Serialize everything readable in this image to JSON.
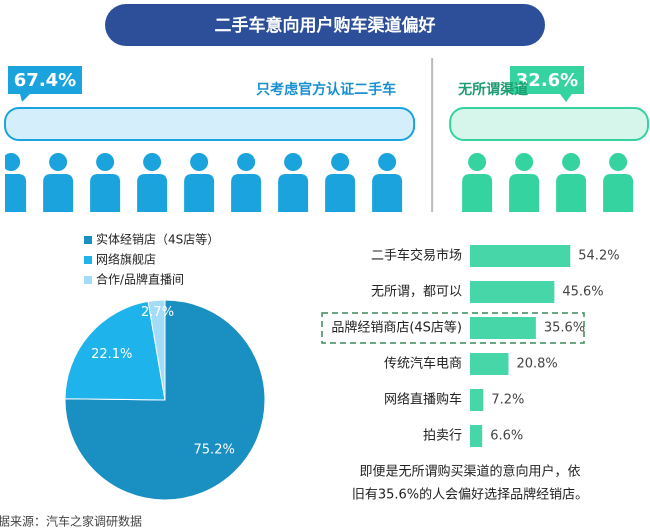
{
  "title": "二手车意向用户购车渠道偏好",
  "chart_data": [
    {
      "type": "split",
      "series": [
        {
          "name": "只考虑官方认证二手车",
          "values": [
            67.4
          ],
          "value_labels": [
            "67.4%"
          ],
          "color": "#1aa3dd"
        },
        {
          "name": "无所谓渠道",
          "values": [
            32.6
          ],
          "value_labels": [
            "32.6%"
          ],
          "color": "#34d3a0"
        }
      ]
    },
    {
      "type": "pie",
      "categories": [
        "实体经销店（4S店等）",
        "网络旗舰店",
        "合作/品牌直播间"
      ],
      "values": [
        75.2,
        22.1,
        2.7
      ],
      "value_labels": [
        "75.2%",
        "22.1%",
        "2.7%"
      ],
      "colors": [
        "#1a8fc2",
        "#1fb3ec",
        "#a3dcf6"
      ]
    },
    {
      "type": "hbar",
      "categories": [
        "二手车交易市场",
        "无所谓，都可以",
        "品牌经销商店(4S店等)",
        "传统汽车电商",
        "网络直播购车",
        "拍卖行"
      ],
      "values": [
        54.2,
        45.6,
        35.6,
        20.8,
        7.2,
        6.6
      ],
      "value_labels": [
        "54.2%",
        "45.6%",
        "35.6%",
        "20.8%",
        "7.2%",
        "6.6%"
      ],
      "color": "#46d6a8",
      "highlight": 2
    }
  ],
  "note": [
    "即便是无所谓购买渠道的意向用户，依",
    "旧有35.6%的人会偏好选择品牌经销店。"
  ],
  "source": "据来源：汽车之家调研数据"
}
